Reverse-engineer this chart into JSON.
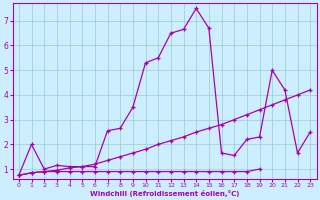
{
  "xlabel": "Windchill (Refroidissement éolien,°C)",
  "background_color": "#cceeff",
  "grid_color": "#99cccc",
  "line_color": "#aa00aa",
  "xlim": [
    -0.5,
    23.5
  ],
  "ylim": [
    0.6,
    7.7
  ],
  "yticks": [
    1,
    2,
    3,
    4,
    5,
    6,
    7
  ],
  "xticks": [
    0,
    1,
    2,
    3,
    4,
    5,
    6,
    7,
    8,
    9,
    10,
    11,
    12,
    13,
    14,
    15,
    16,
    17,
    18,
    19,
    20,
    21,
    22,
    23
  ],
  "series": [
    {
      "x": [
        0,
        1,
        2,
        3,
        4,
        5,
        6,
        7,
        8,
        9,
        10,
        11,
        12,
        13,
        14,
        15,
        16,
        17,
        18,
        19
      ],
      "y": [
        0.75,
        0.85,
        0.9,
        0.9,
        0.9,
        0.9,
        0.9,
        0.9,
        0.9,
        0.9,
        0.9,
        0.9,
        0.9,
        0.9,
        0.9,
        0.9,
        0.9,
        0.9,
        0.9,
        1.0
      ]
    },
    {
      "x": [
        0,
        1,
        2,
        3,
        4,
        5,
        6,
        7,
        8,
        9,
        10,
        11,
        12,
        13,
        14,
        15,
        16,
        17,
        18,
        19,
        20,
        21,
        22,
        23
      ],
      "y": [
        0.75,
        0.85,
        0.9,
        0.95,
        1.05,
        1.1,
        1.2,
        1.35,
        1.5,
        1.65,
        1.8,
        2.0,
        2.15,
        2.3,
        2.5,
        2.65,
        2.8,
        3.0,
        3.2,
        3.4,
        3.6,
        3.8,
        4.0,
        4.2
      ]
    },
    {
      "x": [
        0,
        1,
        2,
        3,
        4,
        5,
        6,
        7,
        8,
        9,
        10,
        11,
        12,
        13,
        14,
        15,
        16,
        17,
        18,
        19,
        20,
        21,
        22,
        23
      ],
      "y": [
        0.75,
        2.0,
        1.0,
        1.15,
        1.1,
        1.1,
        1.1,
        2.55,
        2.65,
        3.5,
        5.3,
        5.5,
        6.5,
        6.65,
        7.5,
        6.7,
        1.65,
        1.55,
        2.2,
        2.3,
        5.0,
        4.2,
        1.65,
        2.5
      ]
    }
  ]
}
